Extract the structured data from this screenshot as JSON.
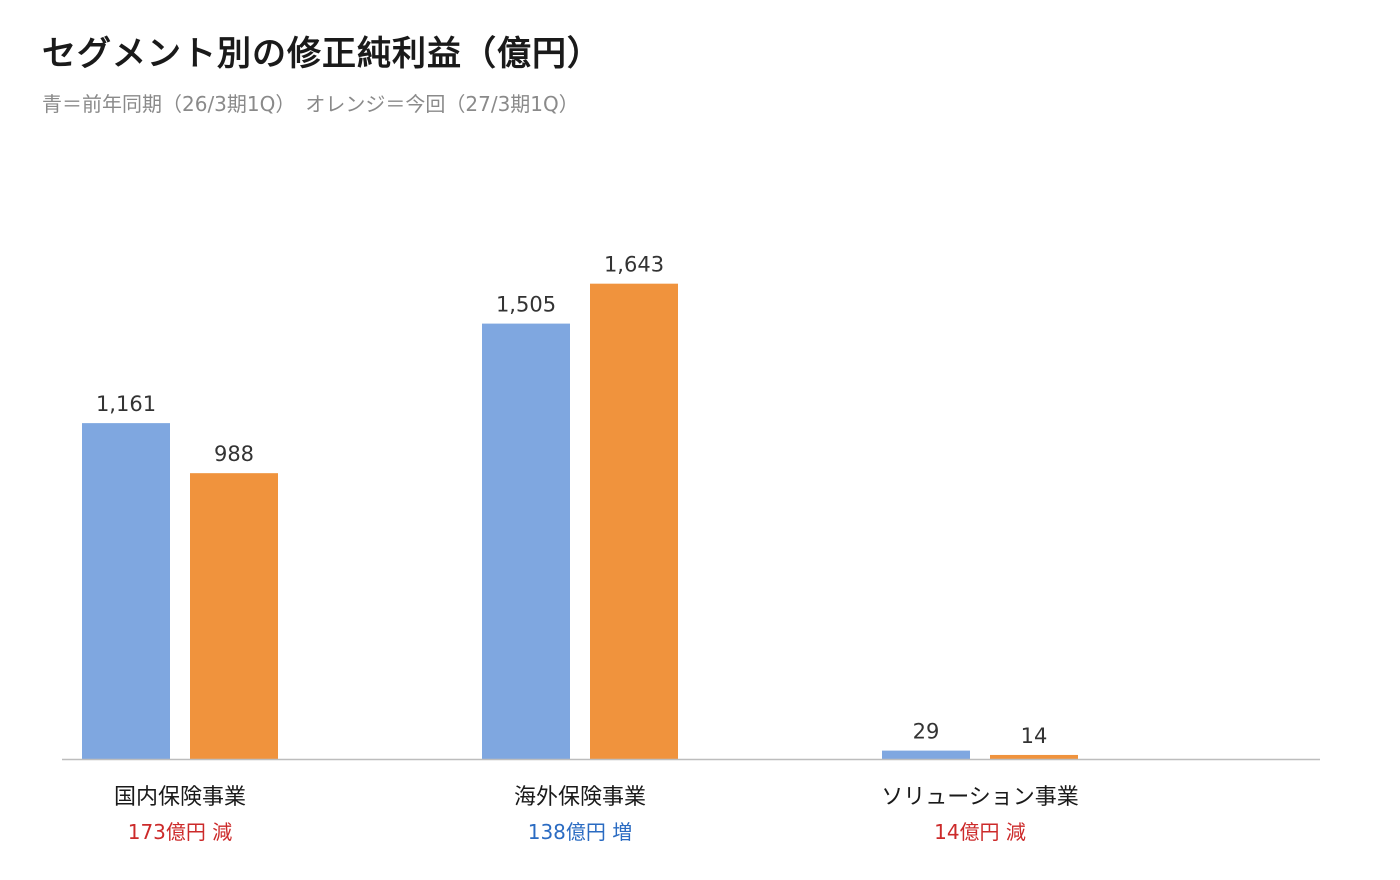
{
  "chart_data": {
    "type": "bar",
    "title": "セグメント別の修正純利益（億円）",
    "subtitle": "青＝前年同期（26/3期1Q）　オレンジ＝今回（27/3期1Q）",
    "categories": [
      "国内保険事業",
      "海外保険事業",
      "ソリューション事業"
    ],
    "series": [
      {
        "values": [
          1161,
          1505,
          29
        ],
        "color": "#7fa7e0"
      },
      {
        "values": [
          988,
          1643,
          14
        ],
        "color": "#f0933d"
      }
    ],
    "value_labels": [
      [
        "1,161",
        "1,505",
        "29"
      ],
      [
        "988",
        "1,643",
        "14"
      ]
    ],
    "annotations": [
      {
        "text": "173億円 減",
        "color": "#cc2a2a"
      },
      {
        "text": "138億円 増",
        "color": "#2a6bc2"
      },
      {
        "text": "14億円 減",
        "color": "#cc2a2a"
      }
    ],
    "ylim": [
      0,
      1700
    ],
    "grid": false,
    "legend": "none",
    "axis_color": "#bdbdbd"
  }
}
